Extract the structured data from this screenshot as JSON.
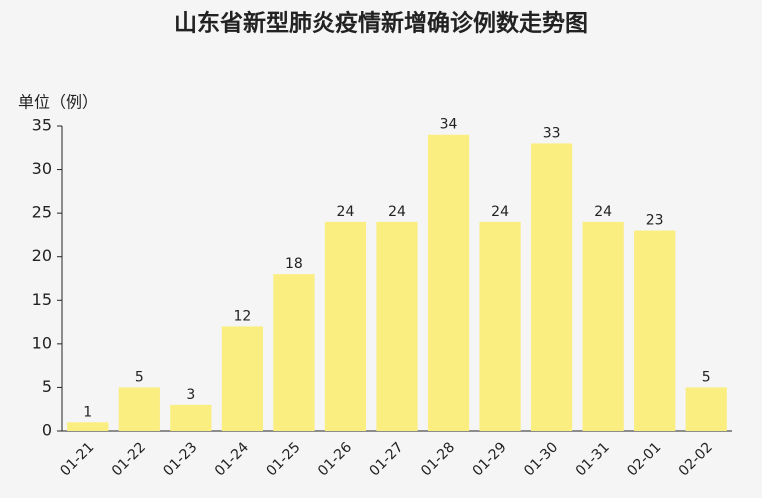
{
  "chart_data": {
    "type": "bar",
    "title": "山东省新型肺炎疫情新增确诊例数走势图",
    "y_label": "单位（例）",
    "categories": [
      "01-21",
      "01-22",
      "01-23",
      "01-24",
      "01-25",
      "01-26",
      "01-27",
      "01-28",
      "01-29",
      "01-30",
      "01-31",
      "02-01",
      "02-02"
    ],
    "values": [
      1,
      5,
      3,
      12,
      18,
      24,
      24,
      34,
      24,
      33,
      24,
      23,
      5
    ],
    "color": "#fbee81",
    "ylim": [
      0,
      35
    ],
    "yticks": [
      0,
      5,
      10,
      15,
      20,
      25,
      30,
      35
    ],
    "grid": false
  }
}
